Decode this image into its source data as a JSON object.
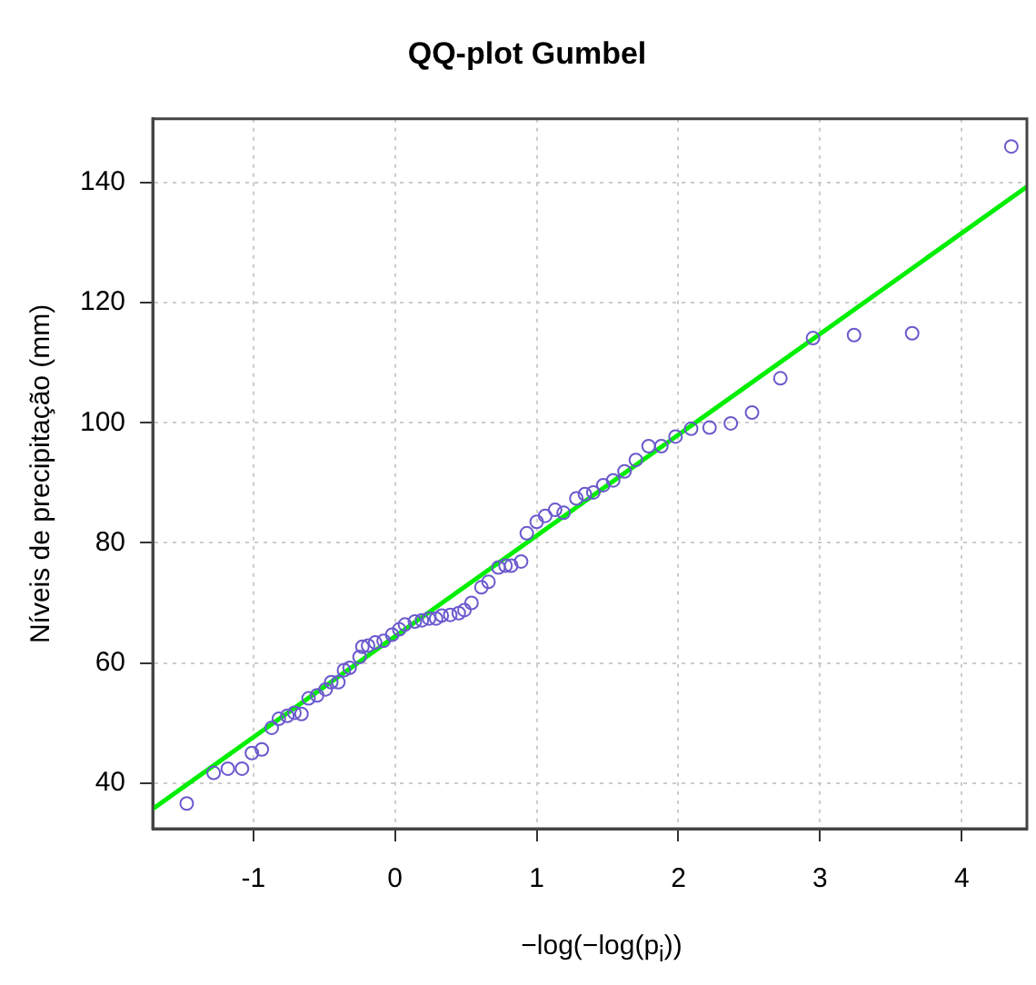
{
  "chart_data": {
    "type": "scatter",
    "title": "QQ-plot Gumbel",
    "xlabel": "−log(−log(p$_{i}$))",
    "ylabel": "Níveis de precipitação (mm)",
    "xlim": [
      -1.71,
      4.46
    ],
    "ylim": [
      32.4,
      150.6
    ],
    "xticks": [
      -1,
      0,
      1,
      2,
      3,
      4
    ],
    "yticks": [
      40,
      60,
      80,
      100,
      120,
      140
    ],
    "grid": true,
    "series": [
      {
        "marker": "circle",
        "color": "#6a5acd",
        "x": [
          -1.47,
          -1.28,
          -1.18,
          -1.08,
          -1.01,
          -0.94,
          -0.87,
          -0.82,
          -0.76,
          -0.71,
          -0.66,
          -0.61,
          -0.55,
          -0.49,
          -0.45,
          -0.4,
          -0.36,
          -0.32,
          -0.25,
          -0.23,
          -0.19,
          -0.14,
          -0.08,
          -0.02,
          0.03,
          0.07,
          0.14,
          0.19,
          0.24,
          0.29,
          0.33,
          0.39,
          0.45,
          0.49,
          0.54,
          0.61,
          0.66,
          0.73,
          0.78,
          0.82,
          0.89,
          0.93,
          1.0,
          1.06,
          1.13,
          1.19,
          1.28,
          1.34,
          1.4,
          1.47,
          1.54,
          1.62,
          1.7,
          1.79,
          1.88,
          1.98,
          2.09,
          2.22,
          2.37,
          2.52,
          2.72,
          2.95,
          3.24,
          3.65,
          4.35
        ],
        "values": [
          36.6,
          41.7,
          42.4,
          42.4,
          45.0,
          45.6,
          49.2,
          50.7,
          51.2,
          51.7,
          51.5,
          54.1,
          54.6,
          55.6,
          56.8,
          56.8,
          58.8,
          59.2,
          61.0,
          62.7,
          62.9,
          63.4,
          63.7,
          64.7,
          65.6,
          66.4,
          66.9,
          67.1,
          67.4,
          67.4,
          67.9,
          68.0,
          68.3,
          68.8,
          70.0,
          72.6,
          73.5,
          75.9,
          76.2,
          76.2,
          76.9,
          81.6,
          83.5,
          84.5,
          85.5,
          85.0,
          87.4,
          88.1,
          88.4,
          89.6,
          90.4,
          91.9,
          93.8,
          96.1,
          96.1,
          97.7,
          99.0,
          99.2,
          99.9,
          101.7,
          107.4,
          114.1,
          114.6,
          114.9,
          146.0
        ]
      },
      {
        "type": "line",
        "marker": "none",
        "color": "#00ee00",
        "x": [
          -1.71,
          4.46
        ],
        "values": [
          35.7,
          139.3
        ]
      }
    ]
  }
}
